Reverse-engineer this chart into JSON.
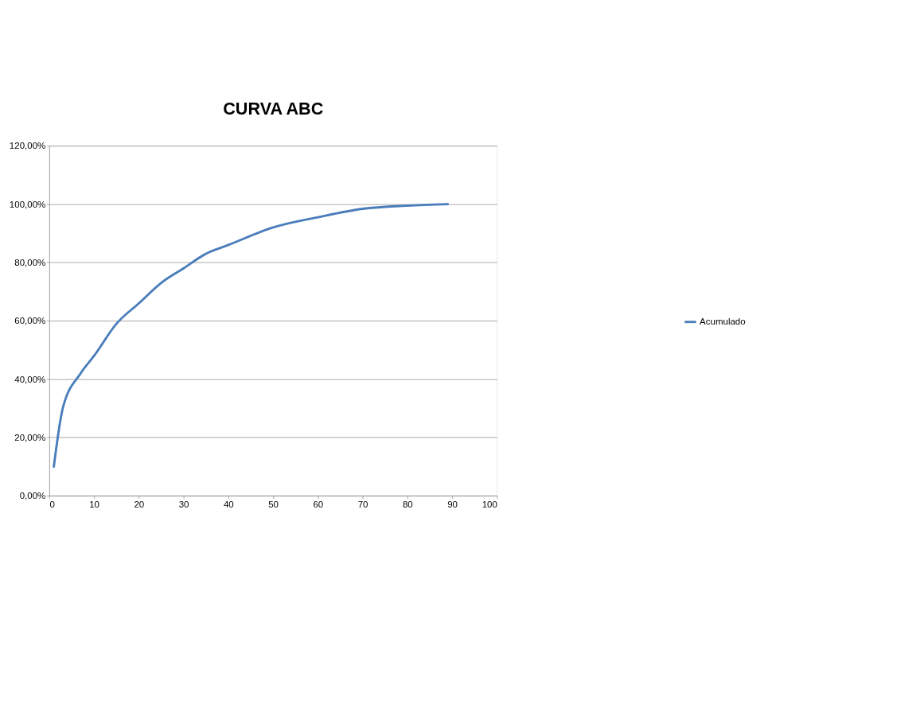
{
  "chart_data": {
    "type": "line",
    "title": "CURVA ABC",
    "series": [
      {
        "name": "Acumulado",
        "color": "#4a7ebb",
        "x": [
          1,
          3,
          7,
          10,
          15,
          20,
          25,
          30,
          35,
          40,
          50,
          60,
          70,
          80,
          89
        ],
        "values": [
          10,
          30,
          42,
          48,
          59,
          66,
          73,
          78,
          83,
          86,
          92,
          95.5,
          98.4,
          99.5,
          100
        ]
      }
    ],
    "xlim": [
      0,
      100
    ],
    "xticks": [
      0,
      10,
      20,
      30,
      40,
      50,
      60,
      70,
      80,
      90,
      100
    ],
    "ylim": [
      0,
      120
    ],
    "yticks": [
      {
        "value": 0,
        "label": "0,00%"
      },
      {
        "value": 20,
        "label": "20,00%"
      },
      {
        "value": 40,
        "label": "40,00%"
      },
      {
        "value": 60,
        "label": "60,00%"
      },
      {
        "value": 80,
        "label": "80,00%"
      },
      {
        "value": 100,
        "label": "100,00%"
      },
      {
        "value": 120,
        "label": "120,00%"
      }
    ],
    "grid": "y",
    "legend": "right",
    "marker": "none",
    "line_style": "solid"
  }
}
